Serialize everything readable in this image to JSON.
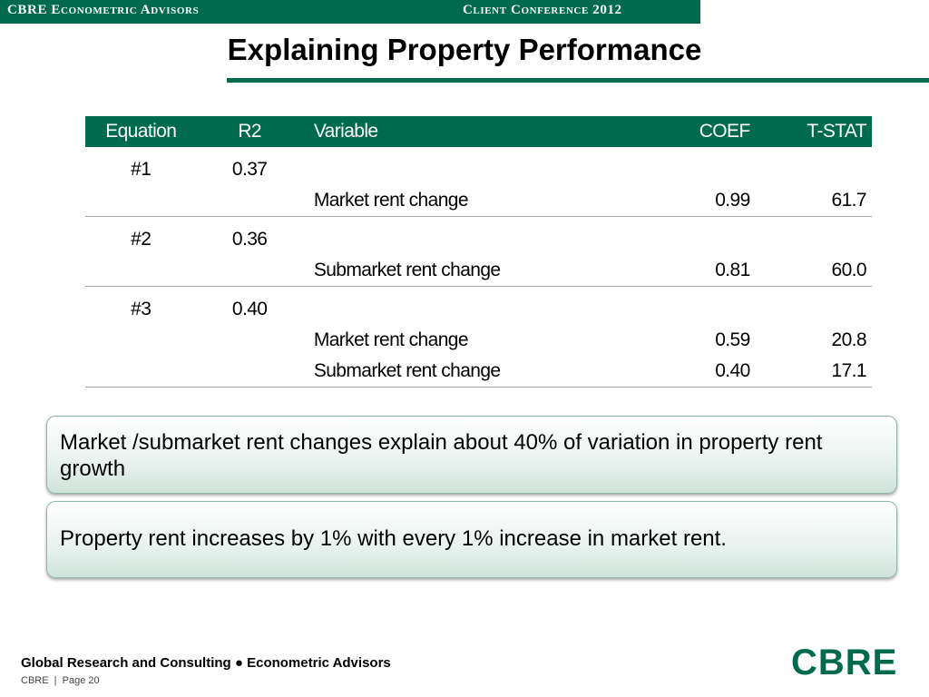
{
  "header": {
    "company": "CBRE Econometric Advisors",
    "event": "Client Conference 2012"
  },
  "title": "Explaining Property Performance",
  "table": {
    "columns": [
      "Equation",
      "R2",
      "Variable",
      "COEF",
      "T-STAT"
    ],
    "rows": [
      {
        "equation": "#1",
        "r2": "0.37",
        "variable": "",
        "coef": "",
        "tstat": ""
      },
      {
        "equation": "",
        "r2": "",
        "variable": "Market rent change",
        "coef": "0.99",
        "tstat": "61.7"
      },
      {
        "equation": "#2",
        "r2": "0.36",
        "variable": "",
        "coef": "",
        "tstat": ""
      },
      {
        "equation": "",
        "r2": "",
        "variable": "Submarket rent change",
        "coef": "0.81",
        "tstat": "60.0"
      },
      {
        "equation": "#3",
        "r2": "0.40",
        "variable": "",
        "coef": "",
        "tstat": ""
      },
      {
        "equation": "",
        "r2": "",
        "variable": "Market rent change",
        "coef": "0.59",
        "tstat": "20.8"
      },
      {
        "equation": "",
        "r2": "",
        "variable": "Submarket rent change",
        "coef": "0.40",
        "tstat": "17.1"
      }
    ]
  },
  "callouts": [
    "Market /submarket rent changes explain about 40% of variation in property rent growth",
    "Property rent increases by 1% with every 1% increase in market rent."
  ],
  "footer": {
    "main": "Global Research and Consulting ● Econometric Advisors",
    "page": "CBRE  |  Page 20"
  },
  "logo": "CBRE",
  "colors": {
    "brand": "#006A4D"
  }
}
